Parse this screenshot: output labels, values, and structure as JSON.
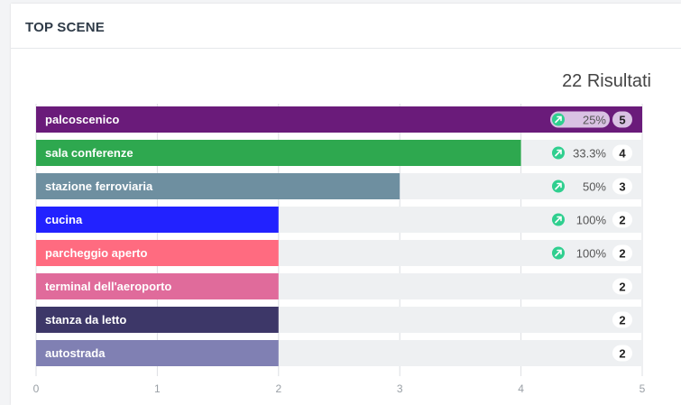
{
  "card": {
    "title": "TOP SCENE",
    "result_count": "22 Risultati"
  },
  "chart_data": {
    "type": "bar",
    "orientation": "horizontal",
    "categories": [
      "palcoscenico",
      "sala conferenze",
      "stazione ferroviaria",
      "cucina",
      "parcheggio aperto",
      "terminal dell'aeroporto",
      "stanza da letto",
      "autostrada"
    ],
    "values": [
      5,
      4,
      3,
      2,
      2,
      2,
      2,
      2
    ],
    "bar_colors": [
      "#6a1b7a",
      "#2ea84f",
      "#6e8fa0",
      "#2222ff",
      "#ff6b80",
      "#e06b9b",
      "#3d3768",
      "#8080b3"
    ],
    "trend_percent": [
      "25%",
      "33.3%",
      "50%",
      "100%",
      "100%",
      "",
      "",
      ""
    ],
    "trend_icon": "arrow-up-right-icon",
    "trend_color": "#2fcf8f",
    "x_ticks": [
      "0",
      "1",
      "2",
      "3",
      "4",
      "5"
    ],
    "xlim": [
      0,
      5
    ],
    "grid": true
  }
}
